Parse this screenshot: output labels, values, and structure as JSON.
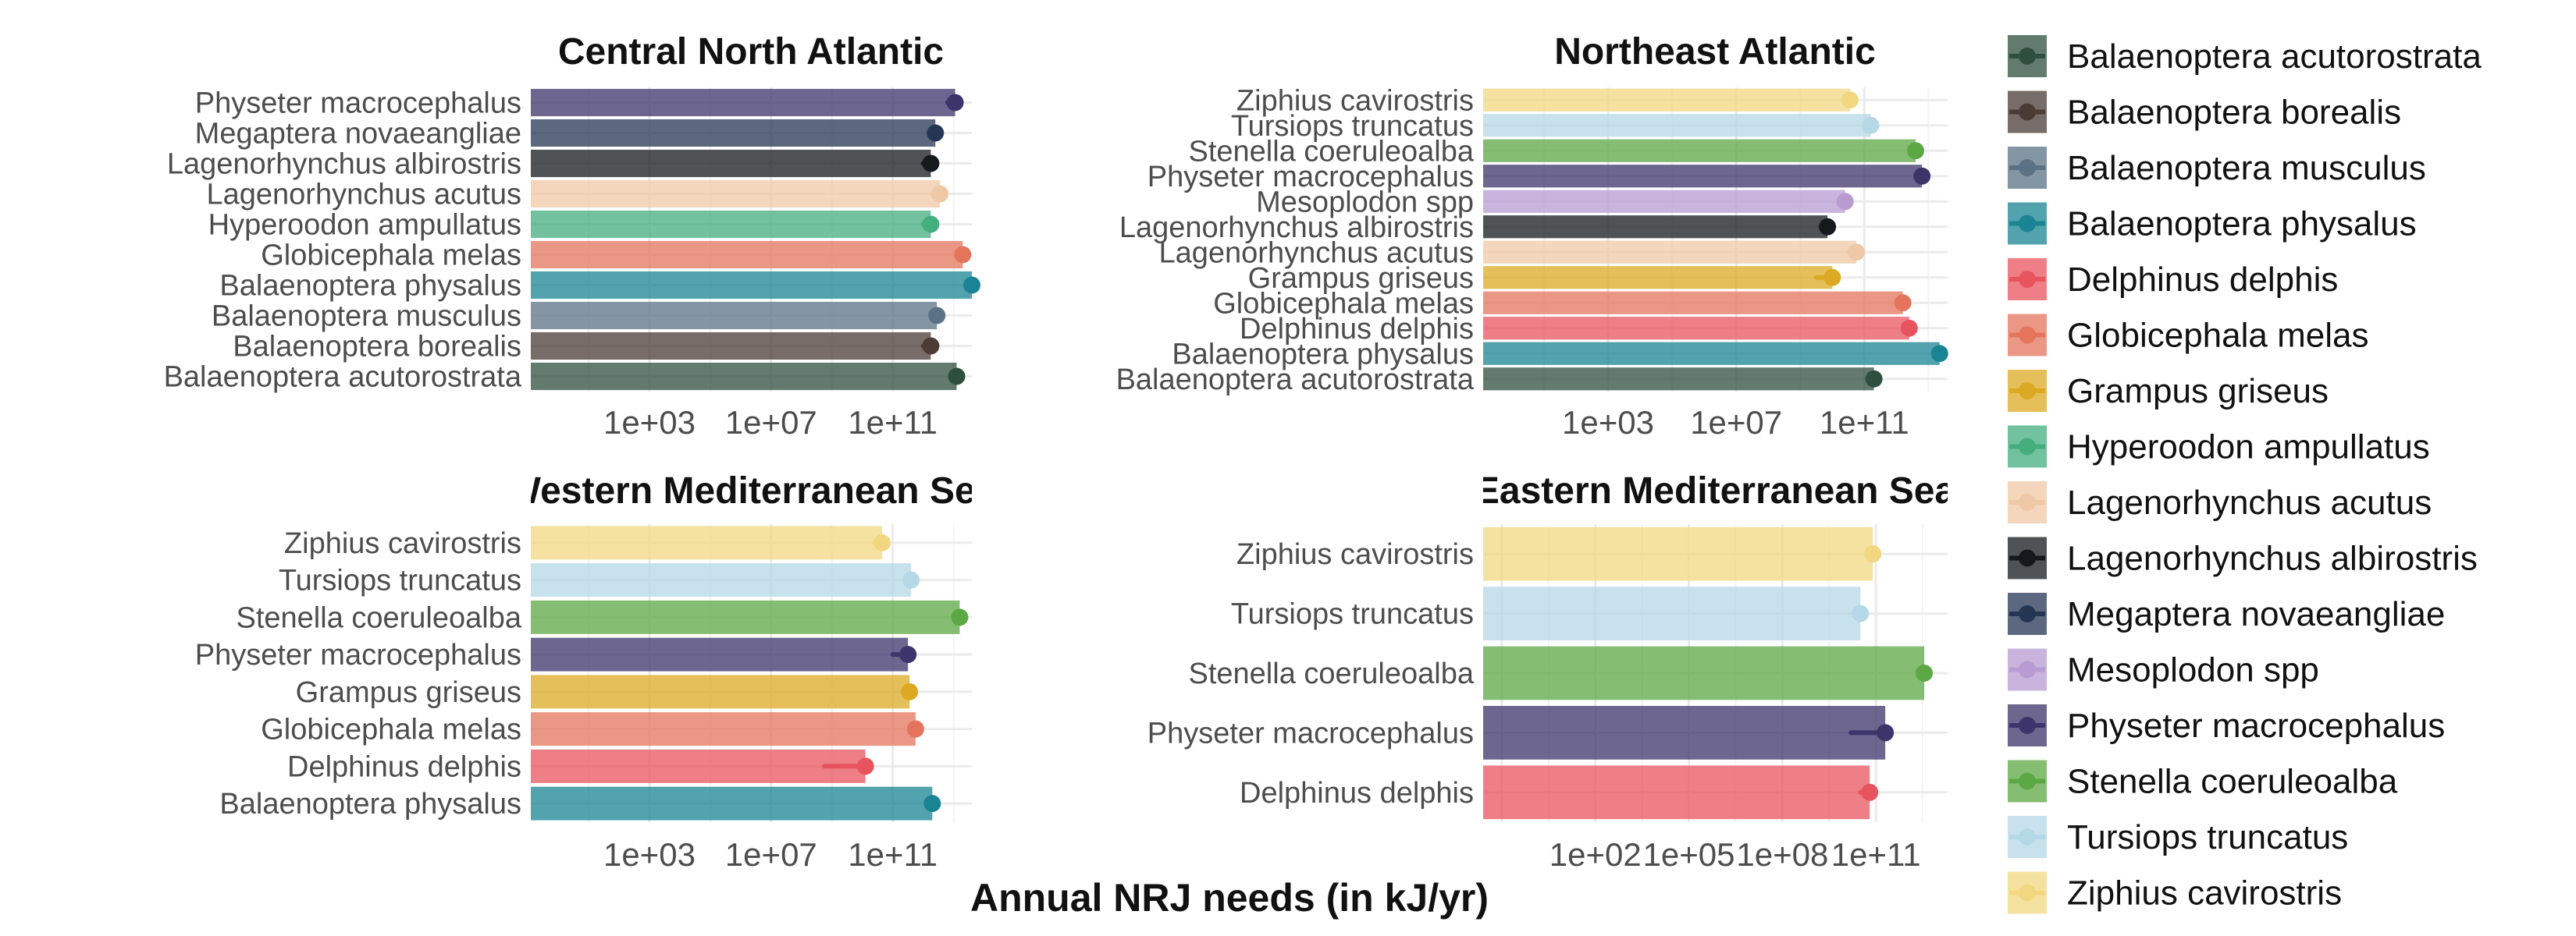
{
  "chart_data": {
    "type": "bar",
    "xlabel": "Annual NRJ needs (in kJ/yr)",
    "x_scale": "log10",
    "bar_alpha": 0.75,
    "colors": {
      "Balaenoptera acutorostrata": "#2f4f3e",
      "Balaenoptera borealis": "#4a3b34",
      "Balaenoptera musculus": "#5b7286",
      "Balaenoptera physalus": "#1a8494",
      "Delphinus delphis": "#e8545e",
      "Globicephala melas": "#e4745c",
      "Grampus griseus": "#dcaa22",
      "Hyperoodon ampullatus": "#44ae7f",
      "Lagenorhynchus acutus": "#efc8a6",
      "Lagenorhynchus albirostris": "#15191d",
      "Megaptera novaeangliae": "#253655",
      "Mesoplodon spp": "#b79bd1",
      "Physeter macrocephalus": "#3c346b",
      "Stenella coeruleoalba": "#5ca844",
      "Tursiops truncatus": "#b4d8e6",
      "Ziphius cavirostris": "#f2d780"
    },
    "panels": [
      {
        "title": "Central North Atlantic",
        "xlim_log10": [
          -0.9,
          13.6
        ],
        "ticks": [
          "1e+03",
          "1e+07",
          "1e+11"
        ],
        "species": [
          "Physeter macrocephalus",
          "Megaptera novaeangliae",
          "Lagenorhynchus albirostris",
          "Lagenorhynchus acutus",
          "Hyperoodon ampullatus",
          "Globicephala melas",
          "Balaenoptera physalus",
          "Balaenoptera musculus",
          "Balaenoptera borealis",
          "Balaenoptera acutorostrata"
        ],
        "values_log10": [
          13.05,
          12.4,
          12.25,
          12.55,
          12.25,
          13.3,
          13.6,
          12.45,
          12.25,
          13.1
        ],
        "ci_log10": [
          [
            12.8,
            13.1
          ],
          [
            12.2,
            12.5
          ],
          [
            12.0,
            12.35
          ],
          [
            12.3,
            12.6
          ],
          [
            12.0,
            12.3
          ],
          [
            13.1,
            13.35
          ],
          [
            13.4,
            13.65
          ],
          [
            12.3,
            12.5
          ],
          [
            12.0,
            12.3
          ],
          [
            12.9,
            13.15
          ]
        ]
      },
      {
        "title": "Northeast Atlantic",
        "xlim_log10": [
          -0.9,
          13.6
        ],
        "ticks": [
          "1e+03",
          "1e+07",
          "1e+11"
        ],
        "species": [
          "Ziphius cavirostris",
          "Tursiops truncatus",
          "Stenella coeruleoalba",
          "Physeter macrocephalus",
          "Mesoplodon spp",
          "Lagenorhynchus albirostris",
          "Lagenorhynchus acutus",
          "Grampus griseus",
          "Globicephala melas",
          "Delphinus delphis",
          "Balaenoptera physalus",
          "Balaenoptera acutorostrata"
        ],
        "values_log10": [
          10.55,
          11.2,
          12.6,
          12.8,
          10.4,
          9.85,
          10.75,
          10.0,
          12.2,
          12.4,
          13.35,
          11.3
        ],
        "ci_log10": [
          [
            10.35,
            10.65
          ],
          [
            11.0,
            11.3
          ],
          [
            12.45,
            12.7
          ],
          [
            12.6,
            12.9
          ],
          [
            10.2,
            10.5
          ],
          [
            9.65,
            9.95
          ],
          [
            10.5,
            10.85
          ],
          [
            9.5,
            10.1
          ],
          [
            12.05,
            12.3
          ],
          [
            12.25,
            12.5
          ],
          [
            13.15,
            13.45
          ],
          [
            11.1,
            11.4
          ]
        ]
      },
      {
        "title": "Western Mediterranean Sea",
        "xlim_log10": [
          -0.9,
          13.6
        ],
        "ticks": [
          "1e+03",
          "1e+07",
          "1e+11"
        ],
        "species": [
          "Ziphius cavirostris",
          "Tursiops truncatus",
          "Stenella coeruleoalba",
          "Physeter macrocephalus",
          "Grampus griseus",
          "Globicephala melas",
          "Delphinus delphis",
          "Balaenoptera physalus"
        ],
        "values_log10": [
          10.65,
          11.6,
          13.2,
          11.5,
          11.55,
          11.75,
          10.1,
          12.3
        ],
        "ci_log10": [
          [
            10.4,
            10.8
          ],
          [
            11.45,
            11.7
          ],
          [
            13.05,
            13.3
          ],
          [
            11.0,
            11.6
          ],
          [
            11.4,
            11.65
          ],
          [
            11.6,
            11.85
          ],
          [
            8.75,
            10.25
          ],
          [
            12.15,
            12.4
          ]
        ]
      },
      {
        "title": "Eastern Mediterranean Sea",
        "xlim_log10": [
          -1.6,
          13.3
        ],
        "ticks": [
          "1e+02",
          "1e+05",
          "1e+08",
          "1e+11"
        ],
        "species": [
          "Ziphius cavirostris",
          "Tursiops truncatus",
          "Stenella coeruleoalba",
          "Physeter macrocephalus",
          "Delphinus delphis"
        ],
        "values_log10": [
          10.9,
          10.5,
          12.55,
          11.3,
          10.8
        ],
        "ci_log10": [
          [
            10.7,
            11.05
          ],
          [
            10.3,
            10.6
          ],
          [
            12.4,
            12.65
          ],
          [
            10.2,
            11.5
          ],
          [
            10.5,
            11.0
          ]
        ]
      }
    ],
    "legend": {
      "position": "right",
      "entries": [
        "Balaenoptera acutorostrata",
        "Balaenoptera borealis",
        "Balaenoptera musculus",
        "Balaenoptera physalus",
        "Delphinus delphis",
        "Globicephala melas",
        "Grampus griseus",
        "Hyperoodon ampullatus",
        "Lagenorhynchus acutus",
        "Lagenorhynchus albirostris",
        "Megaptera novaeangliae",
        "Mesoplodon spp",
        "Physeter macrocephalus",
        "Stenella coeruleoalba",
        "Tursiops truncatus",
        "Ziphius cavirostris"
      ]
    }
  }
}
